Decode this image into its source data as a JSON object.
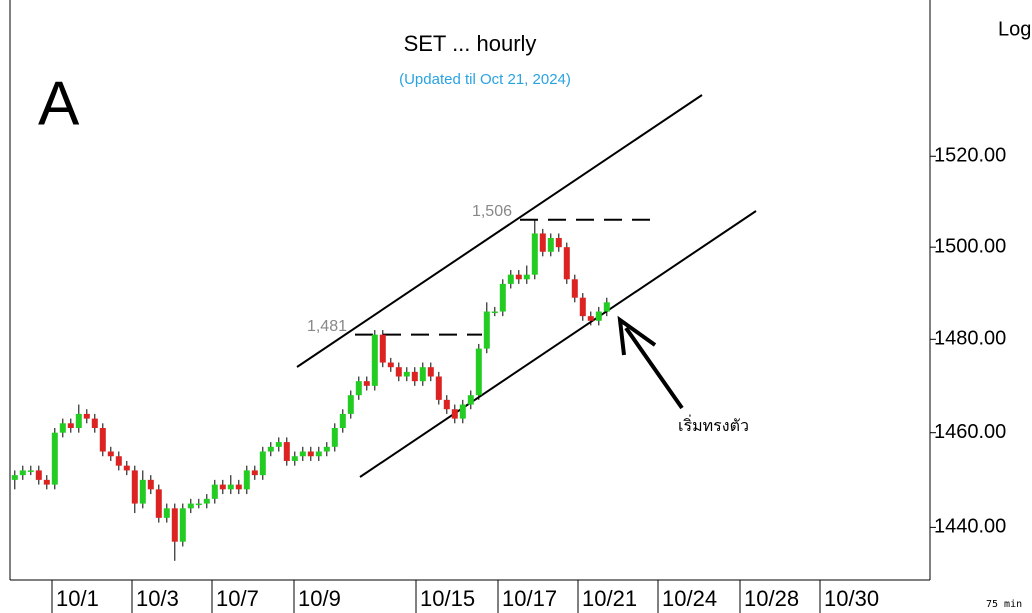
{
  "chart_data": {
    "type": "candlestick",
    "title": "SET ... hourly",
    "subtitle": "(Updated til Oct 21, 2024)",
    "panel_label": "A",
    "scale_label": "Log",
    "interval_label": "75 min",
    "log_scale": true,
    "up_color": "#22cc22",
    "down_color": "#dd2222",
    "subtitle_color": "#29a3e0",
    "ylim": [
      1429,
      1555
    ],
    "yticks": [
      {
        "value": 1440,
        "label": "1440.00"
      },
      {
        "value": 1460,
        "label": "1460.00"
      },
      {
        "value": 1480,
        "label": "1480.00"
      },
      {
        "value": 1500,
        "label": "1500.00"
      },
      {
        "value": 1520,
        "label": "1520.00"
      }
    ],
    "xlim": [
      0,
      115
    ],
    "xticks": [
      {
        "value": 5.25,
        "label": "10/1"
      },
      {
        "value": 15.25,
        "label": "10/3"
      },
      {
        "value": 25.25,
        "label": "10/7"
      },
      {
        "value": 35.5,
        "label": "10/9"
      },
      {
        "value": 50.75,
        "label": "10/15"
      },
      {
        "value": 61,
        "label": "10/17"
      },
      {
        "value": 71,
        "label": "10/21"
      },
      {
        "value": 81,
        "label": "10/24"
      },
      {
        "value": 91.25,
        "label": "10/28"
      },
      {
        "value": 101.25,
        "label": "10/30"
      }
    ],
    "open": [
      1450,
      1451,
      1452,
      1452,
      1450,
      1449,
      1460,
      1462,
      1461,
      1464,
      1463,
      1461,
      1456,
      1455,
      1453,
      1452,
      1445,
      1450,
      1448,
      1442,
      1444,
      1437,
      1444,
      1445,
      1445,
      1446,
      1449,
      1448,
      1449,
      1448,
      1452,
      1451,
      1456,
      1457,
      1458,
      1454,
      1455,
      1456,
      1455,
      1456,
      1457,
      1461,
      1464,
      1468,
      1471,
      1470,
      1481,
      1475,
      1474,
      1472,
      1473,
      1471,
      1474,
      1472,
      1467,
      1465,
      1463,
      1466,
      1468,
      1478,
      1486,
      1486,
      1492,
      1494,
      1493,
      1494,
      1503,
      1499,
      1502,
      1500,
      1493,
      1489,
      1485,
      1484,
      1486
    ],
    "high": [
      1452,
      1453,
      1453,
      1453,
      1451,
      1461,
      1463,
      1463,
      1466,
      1465,
      1464,
      1462,
      1457,
      1456,
      1454,
      1453,
      1452,
      1451,
      1449,
      1445,
      1445,
      1445,
      1446,
      1446,
      1447,
      1450,
      1450,
      1451,
      1450,
      1453,
      1453,
      1457,
      1458,
      1459,
      1459,
      1456,
      1457,
      1457,
      1457,
      1458,
      1462,
      1465,
      1469,
      1472,
      1472,
      1482,
      1482,
      1476,
      1475,
      1474,
      1474,
      1475,
      1475,
      1473,
      1468,
      1466,
      1467,
      1469,
      1479,
      1488,
      1487,
      1493,
      1495,
      1495,
      1496,
      1506,
      1504,
      1503,
      1503,
      1501,
      1494,
      1490,
      1486,
      1487,
      1489
    ],
    "low": [
      1448,
      1450,
      1451,
      1449,
      1448,
      1448,
      1459,
      1460,
      1460,
      1462,
      1460,
      1455,
      1454,
      1452,
      1451,
      1443,
      1444,
      1447,
      1441,
      1441,
      1433,
      1436,
      1443,
      1444,
      1444,
      1445,
      1447,
      1447,
      1447,
      1447,
      1450,
      1450,
      1455,
      1456,
      1453,
      1453,
      1454,
      1454,
      1454,
      1455,
      1456,
      1460,
      1463,
      1467,
      1469,
      1469,
      1474,
      1473,
      1471,
      1471,
      1470,
      1470,
      1471,
      1466,
      1464,
      1462,
      1462,
      1465,
      1467,
      1477,
      1485,
      1485,
      1491,
      1492,
      1492,
      1493,
      1498,
      1498,
      1499,
      1492,
      1488,
      1484,
      1483,
      1483,
      1485
    ],
    "close": [
      1451,
      1452,
      1452,
      1450,
      1449,
      1460,
      1462,
      1461,
      1464,
      1463,
      1461,
      1456,
      1455,
      1453,
      1452,
      1445,
      1450,
      1448,
      1442,
      1444,
      1437,
      1444,
      1445,
      1445,
      1446,
      1449,
      1448,
      1449,
      1448,
      1452,
      1451,
      1456,
      1457,
      1458,
      1454,
      1455,
      1456,
      1455,
      1456,
      1457,
      1461,
      1464,
      1468,
      1471,
      1470,
      1481,
      1475,
      1474,
      1472,
      1473,
      1471,
      1474,
      1472,
      1467,
      1465,
      1463,
      1466,
      1468,
      1478,
      1486,
      1486,
      1492,
      1494,
      1493,
      1494,
      1503,
      1499,
      1502,
      1500,
      1493,
      1489,
      1485,
      1484,
      1486,
      1488
    ],
    "annotations": [
      {
        "label": "1,481",
        "value": 1481
      },
      {
        "label": "1,506",
        "value": 1506
      }
    ],
    "note": "เริ่มทรงตัว"
  }
}
